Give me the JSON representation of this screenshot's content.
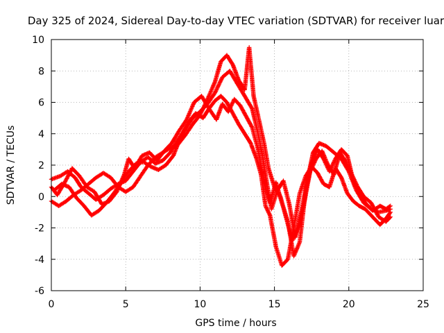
{
  "chart_data": {
    "type": "scatter",
    "title": "Day 325 of 2024, Sidereal Day-to-day VTEC variation (SDTVAR) for receiver luar",
    "xlabel": "GPS time / hours",
    "ylabel": "SDTVAR / TECUs",
    "xlim": [
      0,
      25
    ],
    "ylim": [
      -6,
      10
    ],
    "xticks": [
      "0",
      "5",
      "10",
      "15",
      "20",
      "25"
    ],
    "yticks": [
      "-6",
      "-4",
      "-2",
      "0",
      "2",
      "4",
      "6",
      "8",
      "10"
    ],
    "grid": true,
    "marker": "plus",
    "color": "#ff0000",
    "series": [
      {
        "points": [
          [
            0.0,
            1.1
          ],
          [
            0.6,
            1.3
          ],
          [
            1.1,
            1.6
          ],
          [
            1.6,
            1.2
          ],
          [
            2.0,
            0.6
          ],
          [
            2.5,
            0.2
          ],
          [
            3.0,
            -0.2
          ],
          [
            3.5,
            0.1
          ],
          [
            4.0,
            0.5
          ],
          [
            4.5,
            0.8
          ],
          [
            5.0,
            1.0
          ],
          [
            5.5,
            1.6
          ],
          [
            6.0,
            2.2
          ],
          [
            6.5,
            2.5
          ],
          [
            7.0,
            2.1
          ],
          [
            7.5,
            2.3
          ],
          [
            8.0,
            2.8
          ],
          [
            8.5,
            3.6
          ],
          [
            9.0,
            4.3
          ],
          [
            9.5,
            5.0
          ],
          [
            10.0,
            5.4
          ],
          [
            10.5,
            5.9
          ],
          [
            11.0,
            6.6
          ],
          [
            11.5,
            7.6
          ],
          [
            12.0,
            8.0
          ],
          [
            12.5,
            7.2
          ],
          [
            13.0,
            6.4
          ],
          [
            13.5,
            5.6
          ],
          [
            13.9,
            4.0
          ],
          [
            14.2,
            2.6
          ],
          [
            14.5,
            0.8
          ],
          [
            14.8,
            -0.8
          ],
          [
            15.2,
            0.4
          ],
          [
            15.6,
            1.0
          ],
          [
            16.0,
            -0.5
          ],
          [
            16.4,
            -2.6
          ],
          [
            16.8,
            -1.0
          ],
          [
            17.2,
            1.0
          ],
          [
            17.6,
            2.8
          ],
          [
            18.0,
            3.4
          ],
          [
            18.5,
            3.2
          ],
          [
            19.0,
            2.8
          ],
          [
            19.5,
            2.4
          ],
          [
            20.0,
            1.6
          ],
          [
            20.5,
            0.4
          ],
          [
            21.0,
            -0.4
          ],
          [
            21.5,
            -0.8
          ],
          [
            22.0,
            -1.0
          ],
          [
            22.5,
            -0.9
          ],
          [
            22.8,
            -0.8
          ]
        ]
      },
      {
        "points": [
          [
            0.0,
            -0.3
          ],
          [
            0.5,
            -0.6
          ],
          [
            1.0,
            -0.3
          ],
          [
            1.5,
            0.1
          ],
          [
            2.0,
            0.4
          ],
          [
            2.5,
            0.8
          ],
          [
            3.0,
            1.2
          ],
          [
            3.5,
            1.5
          ],
          [
            4.0,
            1.2
          ],
          [
            4.5,
            0.6
          ],
          [
            5.0,
            0.3
          ],
          [
            5.5,
            0.6
          ],
          [
            6.0,
            1.3
          ],
          [
            6.5,
            2.0
          ],
          [
            7.0,
            2.5
          ],
          [
            7.5,
            2.8
          ],
          [
            8.0,
            3.1
          ],
          [
            8.5,
            3.3
          ],
          [
            9.0,
            3.9
          ],
          [
            9.5,
            4.6
          ],
          [
            10.0,
            5.2
          ],
          [
            10.5,
            6.2
          ],
          [
            11.0,
            7.3
          ],
          [
            11.4,
            8.6
          ],
          [
            11.8,
            9.0
          ],
          [
            12.2,
            8.4
          ],
          [
            12.6,
            7.4
          ],
          [
            13.0,
            6.8
          ],
          [
            13.3,
            9.5
          ],
          [
            13.6,
            6.4
          ],
          [
            14.0,
            4.7
          ],
          [
            14.3,
            3.4
          ],
          [
            14.6,
            1.8
          ],
          [
            15.0,
            0.6
          ],
          [
            15.4,
            0.0
          ],
          [
            15.8,
            -1.4
          ],
          [
            16.2,
            -2.8
          ],
          [
            16.6,
            -2.0
          ],
          [
            17.0,
            -0.4
          ],
          [
            17.4,
            1.6
          ],
          [
            17.8,
            2.4
          ],
          [
            18.2,
            2.9
          ],
          [
            18.6,
            2.0
          ],
          [
            19.0,
            1.4
          ],
          [
            19.4,
            2.8
          ],
          [
            19.8,
            2.2
          ],
          [
            20.2,
            1.4
          ],
          [
            20.6,
            0.6
          ],
          [
            21.0,
            0.0
          ],
          [
            21.5,
            -0.4
          ],
          [
            22.0,
            -1.3
          ],
          [
            22.5,
            -1.6
          ],
          [
            22.8,
            -1.3
          ]
        ]
      },
      {
        "points": [
          [
            0.2,
            0.4
          ],
          [
            0.7,
            0.8
          ],
          [
            1.2,
            0.6
          ],
          [
            1.7,
            -0.1
          ],
          [
            2.2,
            -0.6
          ],
          [
            2.7,
            -1.2
          ],
          [
            3.2,
            -0.9
          ],
          [
            3.7,
            -0.4
          ],
          [
            4.2,
            0.2
          ],
          [
            4.7,
            0.9
          ],
          [
            5.2,
            1.6
          ],
          [
            5.7,
            2.1
          ],
          [
            6.2,
            2.2
          ],
          [
            6.7,
            1.9
          ],
          [
            7.2,
            1.7
          ],
          [
            7.7,
            2.0
          ],
          [
            8.2,
            2.6
          ],
          [
            8.7,
            3.8
          ],
          [
            9.2,
            4.7
          ],
          [
            9.7,
            5.3
          ],
          [
            10.2,
            5.0
          ],
          [
            10.6,
            5.6
          ],
          [
            11.0,
            6.1
          ],
          [
            11.4,
            6.4
          ],
          [
            11.8,
            6.0
          ],
          [
            12.2,
            5.3
          ],
          [
            12.6,
            4.6
          ],
          [
            13.0,
            4.0
          ],
          [
            13.4,
            3.4
          ],
          [
            13.8,
            2.4
          ],
          [
            14.1,
            1.4
          ],
          [
            14.4,
            -0.6
          ],
          [
            14.7,
            -1.2
          ],
          [
            15.1,
            -3.2
          ],
          [
            15.5,
            -4.4
          ],
          [
            15.9,
            -4.0
          ],
          [
            16.3,
            -2.0
          ],
          [
            16.7,
            0.2
          ],
          [
            17.1,
            1.3
          ],
          [
            17.5,
            1.9
          ],
          [
            17.9,
            1.5
          ],
          [
            18.3,
            0.8
          ],
          [
            18.7,
            0.6
          ],
          [
            19.1,
            1.8
          ],
          [
            19.5,
            1.2
          ],
          [
            19.9,
            0.2
          ],
          [
            20.3,
            -0.3
          ],
          [
            20.7,
            -0.6
          ],
          [
            21.1,
            -0.8
          ],
          [
            21.6,
            -1.3
          ],
          [
            22.1,
            -1.8
          ],
          [
            22.5,
            -1.4
          ],
          [
            22.8,
            -1.0
          ]
        ]
      },
      {
        "points": [
          [
            0.0,
            0.6
          ],
          [
            0.4,
            0.1
          ],
          [
            0.9,
            0.9
          ],
          [
            1.4,
            1.8
          ],
          [
            1.9,
            1.3
          ],
          [
            2.4,
            0.6
          ],
          [
            2.9,
            0.3
          ],
          [
            3.4,
            -0.5
          ],
          [
            3.9,
            -0.3
          ],
          [
            4.4,
            0.3
          ],
          [
            4.9,
            1.4
          ],
          [
            5.2,
            2.4
          ],
          [
            5.6,
            1.8
          ],
          [
            6.1,
            2.6
          ],
          [
            6.6,
            2.8
          ],
          [
            7.1,
            2.3
          ],
          [
            7.6,
            2.9
          ],
          [
            8.1,
            3.4
          ],
          [
            8.6,
            4.2
          ],
          [
            9.1,
            4.9
          ],
          [
            9.6,
            6.0
          ],
          [
            10.1,
            6.4
          ],
          [
            10.6,
            5.6
          ],
          [
            11.1,
            4.9
          ],
          [
            11.5,
            5.9
          ],
          [
            11.9,
            5.4
          ],
          [
            12.3,
            6.2
          ],
          [
            12.7,
            5.8
          ],
          [
            13.1,
            5.1
          ],
          [
            13.5,
            4.4
          ],
          [
            13.9,
            3.0
          ],
          [
            14.3,
            0.9
          ],
          [
            14.7,
            -0.4
          ],
          [
            15.1,
            0.9
          ],
          [
            15.5,
            -0.4
          ],
          [
            15.9,
            -1.6
          ],
          [
            16.3,
            -3.8
          ],
          [
            16.7,
            -2.9
          ],
          [
            17.1,
            0.4
          ],
          [
            17.5,
            2.1
          ],
          [
            17.9,
            3.0
          ],
          [
            18.3,
            2.4
          ],
          [
            18.7,
            1.6
          ],
          [
            19.1,
            2.4
          ],
          [
            19.5,
            3.0
          ],
          [
            19.9,
            2.6
          ],
          [
            20.3,
            1.0
          ],
          [
            20.7,
            0.2
          ],
          [
            21.1,
            -0.4
          ],
          [
            21.6,
            -0.9
          ],
          [
            22.1,
            -0.6
          ],
          [
            22.5,
            -0.8
          ],
          [
            22.8,
            -0.6
          ]
        ]
      }
    ]
  }
}
